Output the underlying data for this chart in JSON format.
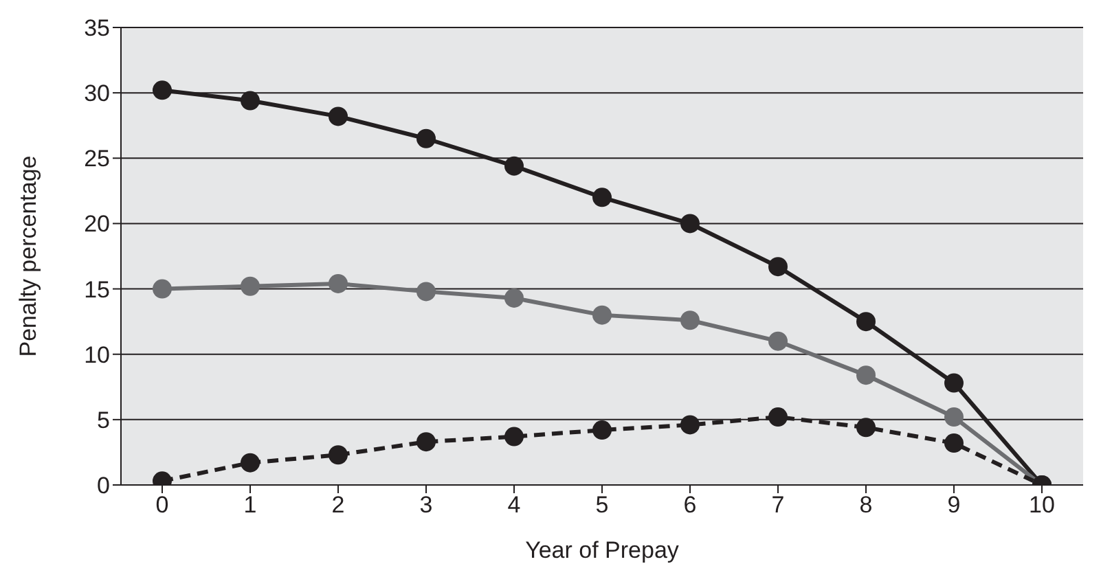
{
  "chart_data": {
    "type": "line",
    "xlabel": "Year of Prepay",
    "ylabel": "Penalty percentage",
    "categories": [
      "0",
      "1",
      "2",
      "3",
      "4",
      "5",
      "6",
      "7",
      "8",
      "9",
      "10"
    ],
    "series": [
      {
        "color": "#231f20",
        "line_style": "solid",
        "values": [
          30.2,
          29.4,
          28.2,
          26.5,
          24.4,
          22,
          20,
          16.7,
          12.5,
          7.8,
          0
        ]
      },
      {
        "color": "#6d6e71",
        "line_style": "solid",
        "values": [
          15,
          15.2,
          15.4,
          14.8,
          14.3,
          13,
          12.6,
          11,
          8.4,
          5.2,
          0
        ]
      },
      {
        "color": "#231f20",
        "line_style": "dashed",
        "values": [
          0.3,
          1.7,
          2.3,
          3.3,
          3.7,
          4.2,
          4.6,
          5.2,
          4.4,
          3.2,
          0
        ]
      }
    ],
    "ylim": [
      0,
      35
    ],
    "yticks": [
      0,
      5,
      10,
      15,
      20,
      25,
      30,
      35
    ],
    "grid": "y",
    "marker": "circle",
    "legend": false
  }
}
